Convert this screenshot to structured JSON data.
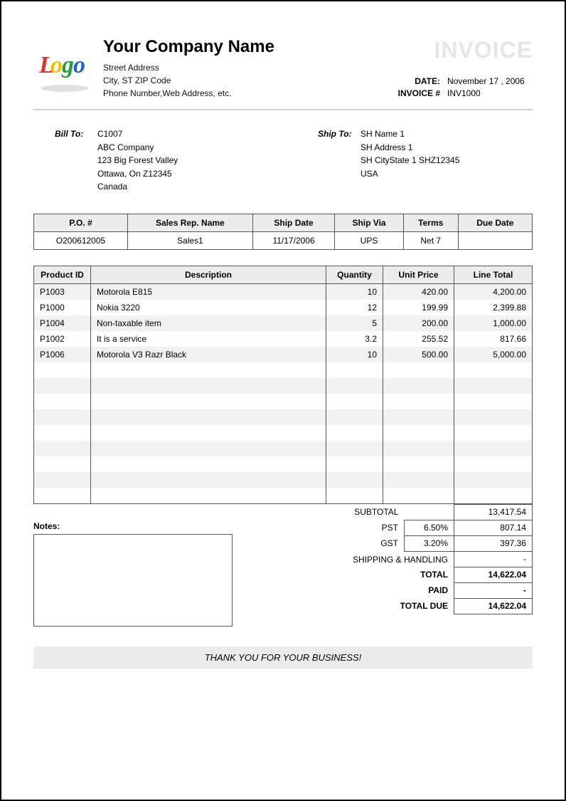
{
  "company": {
    "name": "Your Company Name",
    "line1": "Street Address",
    "line2": "City, ST  ZIP Code",
    "line3": "Phone Number,Web Address, etc."
  },
  "title": "INVOICE",
  "meta": {
    "date_label": "DATE:",
    "date_value": "November 17 , 2006",
    "invnum_label": "INVOICE #",
    "invnum_value": "INV1000"
  },
  "bill": {
    "label": "Bill To:",
    "l1": "C1007",
    "l2": "ABC Company",
    "l3": "123 Big Forest Valley",
    "l4": "Ottawa, On Z12345",
    "l5": "Canada"
  },
  "ship": {
    "label": "Ship To:",
    "l1": "SH Name 1",
    "l2": "SH Address 1",
    "l3": "SH CityState 1 SHZ12345",
    "l4": "USA"
  },
  "order": {
    "headers": {
      "po": "P.O. #",
      "rep": "Sales Rep. Name",
      "shipdate": "Ship Date",
      "shipvia": "Ship Via",
      "terms": "Terms",
      "due": "Due Date"
    },
    "row": {
      "po": "O200612005",
      "rep": "Sales1",
      "shipdate": "11/17/2006",
      "shipvia": "UPS",
      "terms": "Net 7",
      "due": ""
    }
  },
  "items": {
    "headers": {
      "pid": "Product ID",
      "desc": "Description",
      "qty": "Quantity",
      "price": "Unit Price",
      "total": "Line Total"
    },
    "rows": [
      {
        "pid": "P1003",
        "desc": "Motorola E815",
        "qty": "10",
        "price": "420.00",
        "total": "4,200.00"
      },
      {
        "pid": "P1000",
        "desc": "Nokia 3220",
        "qty": "12",
        "price": "199.99",
        "total": "2,399.88"
      },
      {
        "pid": "P1004",
        "desc": "Non-taxable  item",
        "qty": "5",
        "price": "200.00",
        "total": "1,000.00"
      },
      {
        "pid": "P1002",
        "desc": "It is a service",
        "qty": "3.2",
        "price": "255.52",
        "total": "817.66"
      },
      {
        "pid": "P1006",
        "desc": "Motorola V3 Razr Black",
        "qty": "10",
        "price": "500.00",
        "total": "5,000.00"
      }
    ],
    "blank_rows": 9
  },
  "notes_label": "Notes:",
  "totals": {
    "subtotal_label": "SUBTOTAL",
    "subtotal": "13,417.54",
    "pst_label": "PST",
    "pst_pct": "6.50%",
    "pst_val": "807.14",
    "gst_label": "GST",
    "gst_pct": "3.20%",
    "gst_val": "397.36",
    "ship_label": "SHIPPING & HANDLING",
    "ship_val": "-",
    "total_label": "TOTAL",
    "total_val": "14,622.04",
    "paid_label": "PAID",
    "paid_val": "-",
    "due_label": "TOTAL DUE",
    "due_val": "14,622.04"
  },
  "thanks": "THANK YOU FOR YOUR BUSINESS!",
  "colors": {
    "header_bg": "#ececec",
    "stripe_bg": "#f1f1f1",
    "border": "#555555",
    "title_gray": "#e5e5e5"
  }
}
